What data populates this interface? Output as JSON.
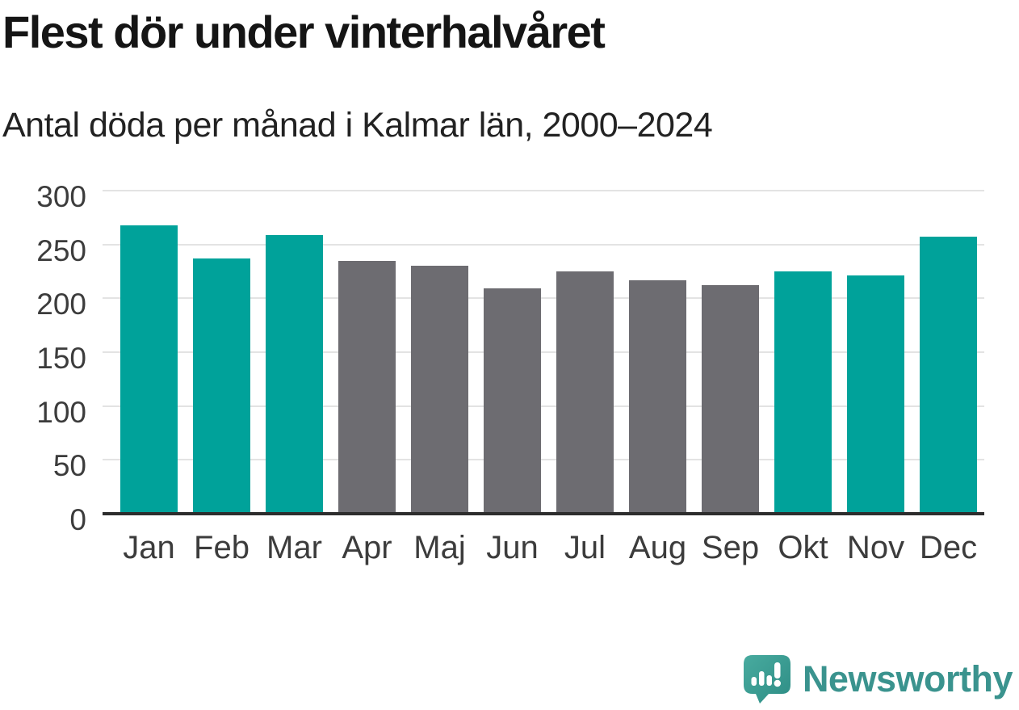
{
  "title": "Flest dör under vinterhalvåret",
  "subtitle": "Antal döda per månad i Kalmar län, 2000–2024",
  "chart_data": {
    "type": "bar",
    "categories": [
      "Jan",
      "Feb",
      "Mar",
      "Apr",
      "Maj",
      "Jun",
      "Jul",
      "Aug",
      "Sep",
      "Okt",
      "Nov",
      "Dec"
    ],
    "values": [
      268,
      237,
      259,
      235,
      230,
      209,
      225,
      217,
      212,
      225,
      221,
      257
    ],
    "bar_color_keys": [
      "winter",
      "winter",
      "winter",
      "summer",
      "summer",
      "summer",
      "summer",
      "summer",
      "summer",
      "winter",
      "winter",
      "winter"
    ],
    "colors": {
      "winter": "#00a29a",
      "summer": "#6d6c71"
    },
    "title": "Flest dör under vinterhalvåret",
    "subtitle": "Antal döda per månad i Kalmar län, 2000–2024",
    "xlabel": "",
    "ylabel": "",
    "ylim": [
      0,
      300
    ],
    "yticks": [
      0,
      50,
      100,
      150,
      200,
      250,
      300
    ],
    "grid": true,
    "legend": "none",
    "gridline_color": "#e3e3e3",
    "axis_line_color": "#2d2d2d",
    "tick_label_color": "#3c3c3c"
  },
  "footer": {
    "brand": "Newsworthy",
    "brand_color": "#3a938e",
    "logo_icon": "newsworthy-speech-bubble-chart-icon",
    "logo_bubble_colors": [
      "#48ab9f",
      "#2e8d85"
    ]
  }
}
